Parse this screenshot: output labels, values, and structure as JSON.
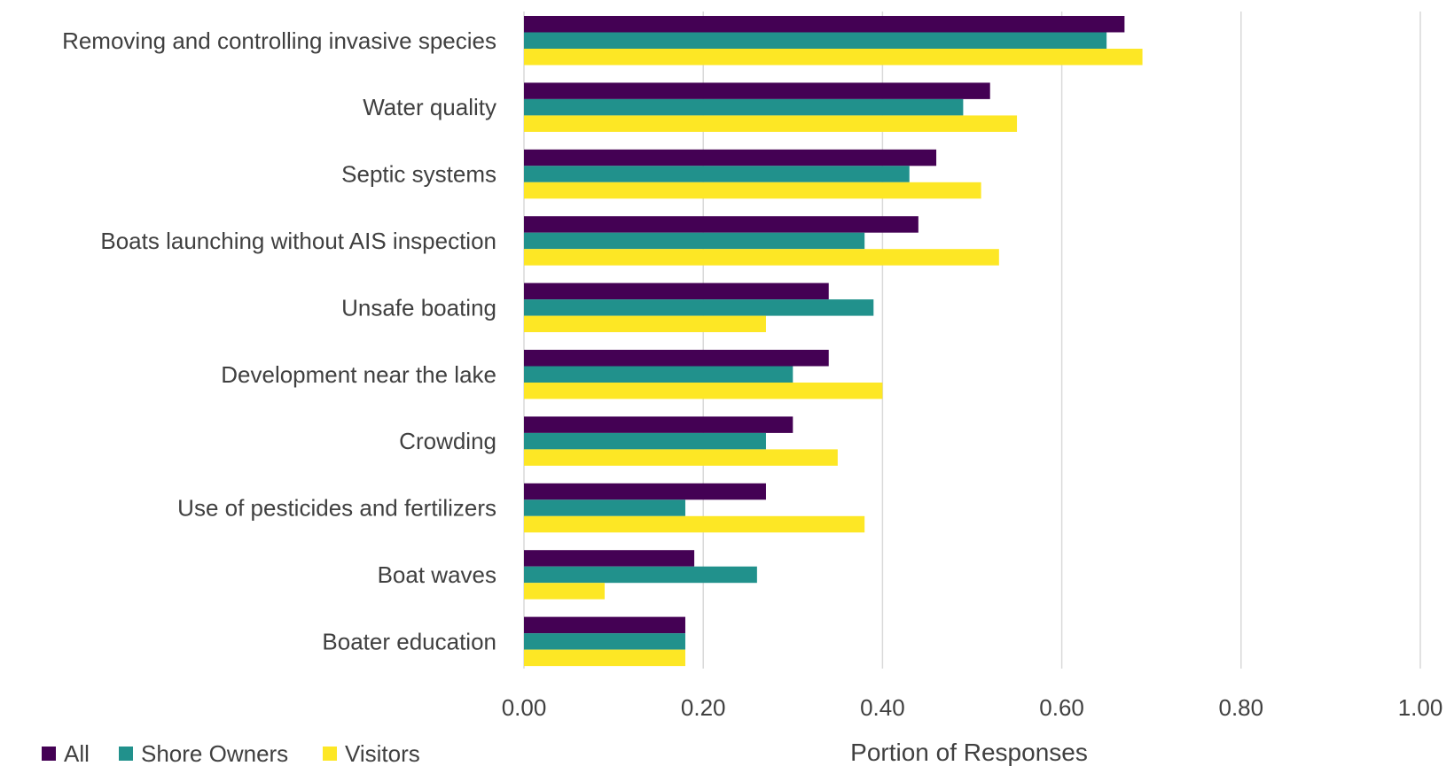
{
  "chart_data": {
    "type": "bar",
    "orientation": "horizontal",
    "categories": [
      "Removing and controlling invasive species",
      "Water quality",
      "Septic systems",
      "Boats launching without AIS inspection",
      "Unsafe boating",
      "Development near the lake",
      "Crowding",
      "Use of pesticides and fertilizers",
      "Boat waves",
      "Boater education"
    ],
    "series": [
      {
        "name": "All",
        "color": "#440154",
        "values": [
          0.67,
          0.52,
          0.46,
          0.44,
          0.34,
          0.34,
          0.3,
          0.27,
          0.19,
          0.18
        ]
      },
      {
        "name": "Shore Owners",
        "color": "#21918c",
        "values": [
          0.65,
          0.49,
          0.43,
          0.38,
          0.39,
          0.3,
          0.27,
          0.18,
          0.26,
          0.18
        ]
      },
      {
        "name": "Visitors",
        "color": "#fde725",
        "values": [
          0.69,
          0.55,
          0.51,
          0.53,
          0.27,
          0.4,
          0.35,
          0.38,
          0.09,
          0.18
        ]
      }
    ],
    "xlabel": "Portion of Responses",
    "ylabel": "",
    "xlim": [
      0,
      1
    ],
    "xticks": [
      0,
      0.2,
      0.4,
      0.6,
      0.8,
      1.0
    ],
    "xtick_labels": [
      "0.00",
      "0.20",
      "0.40",
      "0.60",
      "0.80",
      "1.00"
    ],
    "grid": "vertical",
    "legend_position": "bottom-left"
  }
}
